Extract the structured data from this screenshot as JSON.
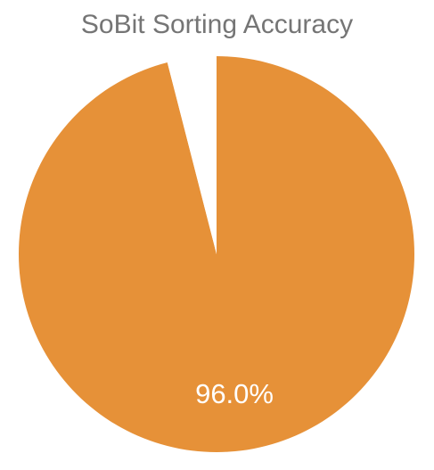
{
  "chart_data": {
    "type": "pie",
    "title": "SoBit Sorting Accuracy",
    "slices": [
      {
        "value": 96.0,
        "color": "#e69138",
        "label": "96.0%"
      },
      {
        "value": 4.0,
        "color": "#ffffff",
        "label": ""
      }
    ],
    "start_angle_deg": 0,
    "direction": "clockwise",
    "legend": "none"
  }
}
